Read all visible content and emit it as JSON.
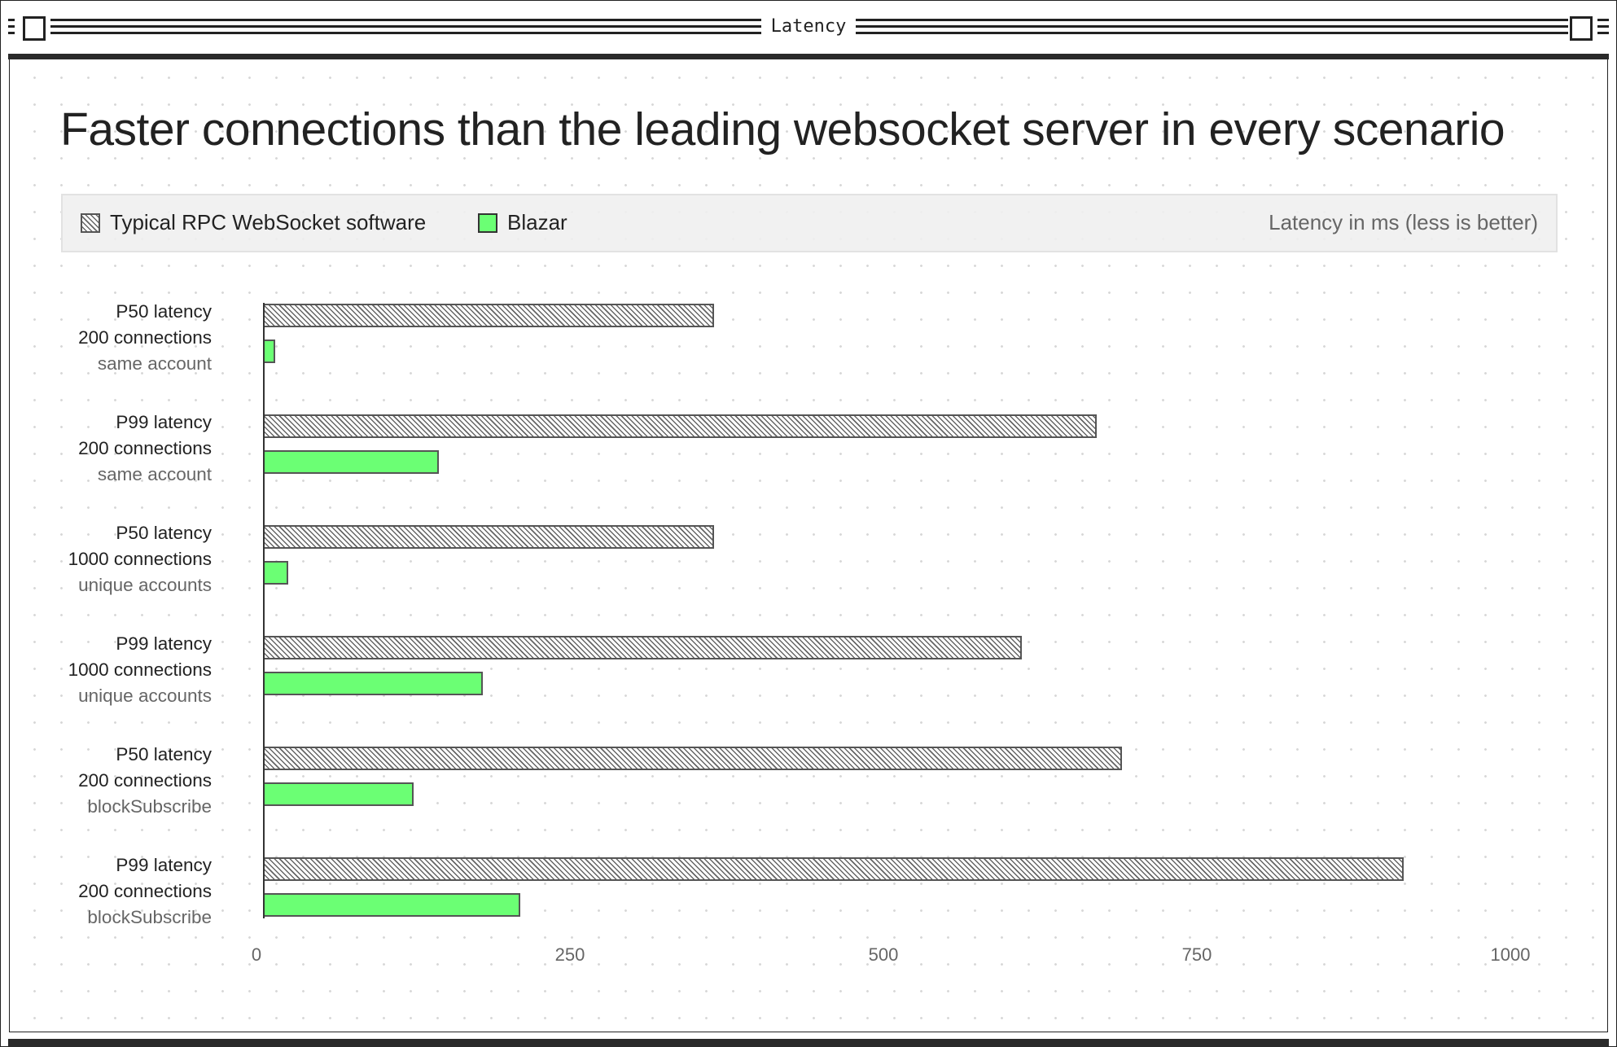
{
  "window": {
    "title": "Latency"
  },
  "chart_data": {
    "type": "bar",
    "orientation": "horizontal",
    "title": "Faster connections than the leading websocket server in every scenario",
    "unit_label": "Latency in ms (less is better)",
    "legend_placement": "top",
    "categories": [
      {
        "line1": "P50 latency",
        "line2": "200 connections",
        "line3": "same account"
      },
      {
        "line1": "P99 latency",
        "line2": "200 connections",
        "line3": "same account"
      },
      {
        "line1": "P50 latency",
        "line2": "1000 connections",
        "line3": "unique accounts"
      },
      {
        "line1": "P99 latency",
        "line2": "1000 connections",
        "line3": "unique accounts"
      },
      {
        "line1": "P50 latency",
        "line2": "200 connections",
        "line3": "blockSubscribe"
      },
      {
        "line1": "P99 latency",
        "line2": "200 connections",
        "line3": "blockSubscribe"
      }
    ],
    "series": [
      {
        "name": "Typical RPC WebSocket software",
        "style": "hatched",
        "color": "#666666",
        "values": [
          360,
          665,
          360,
          605,
          685,
          910
        ]
      },
      {
        "name": "Blazar",
        "style": "solid",
        "color": "#6bff74",
        "values": [
          10,
          140,
          20,
          175,
          120,
          205
        ]
      }
    ],
    "xlim": [
      0,
      1000
    ],
    "xticks": [
      "0",
      "250",
      "500",
      "750",
      "1000"
    ],
    "grid": false
  }
}
